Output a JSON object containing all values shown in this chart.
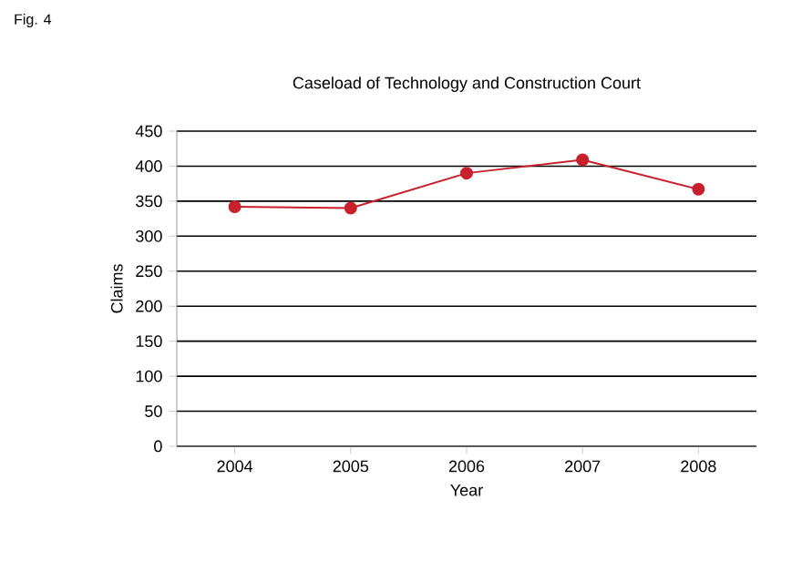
{
  "chart_data": {
    "type": "line",
    "title": "Caseload of Technology and Construction Court",
    "xlabel": "Year",
    "ylabel": "Claims",
    "annotations": [
      "Fig. 4"
    ],
    "categories": [
      "2004",
      "2005",
      "2006",
      "2007",
      "2008"
    ],
    "series": [
      {
        "color": "#c8202c",
        "values": [
          342,
          340,
          390,
          409,
          367
        ]
      }
    ],
    "ylim": [
      0,
      450
    ],
    "yticks": [
      0,
      50,
      100,
      150,
      200,
      250,
      300,
      350,
      400,
      450
    ],
    "grid": "y",
    "marker": "circle",
    "line_style": "solid"
  }
}
